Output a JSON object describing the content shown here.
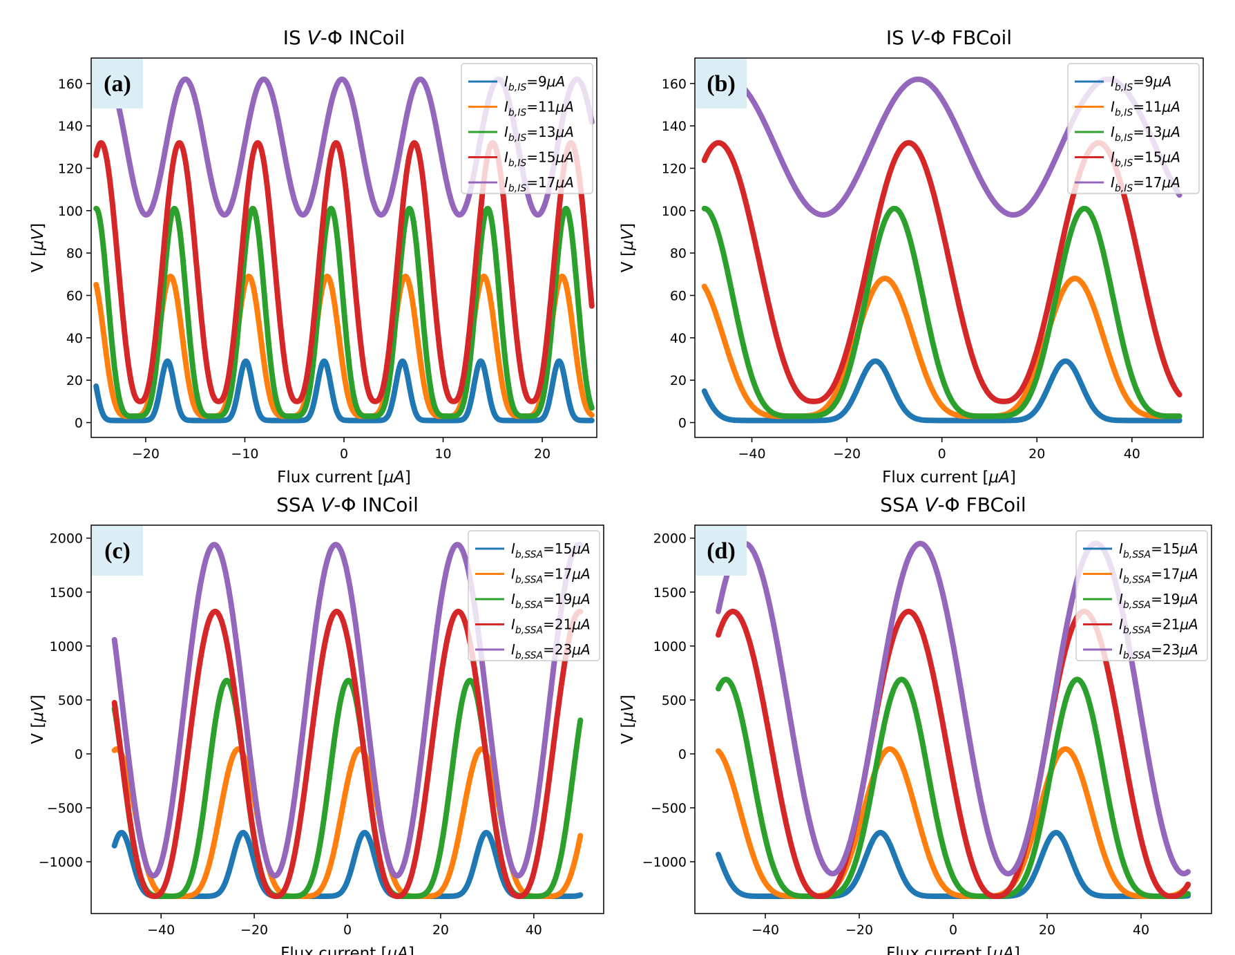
{
  "chart_data": [
    {
      "type": "line",
      "panel_label": "(a)",
      "title_parts": [
        "IS ",
        "V",
        "-Φ INCoil"
      ],
      "xlabel_parts": [
        "Flux current [",
        "μA",
        "]"
      ],
      "ylabel_parts": [
        "V [",
        "μV",
        "]"
      ],
      "xlim": [
        -25.5,
        25.5
      ],
      "ylim": [
        -7,
        172
      ],
      "xticks": [
        -20,
        -10,
        0,
        10,
        20
      ],
      "xtick_labels": [
        "−20",
        "−10",
        "0",
        "10",
        "20"
      ],
      "yticks": [
        0,
        20,
        40,
        60,
        80,
        100,
        120,
        140,
        160
      ],
      "ytick_labels": [
        "0",
        "20",
        "40",
        "60",
        "80",
        "100",
        "120",
        "140",
        "160"
      ],
      "legend_position": "top-right",
      "series": [
        {
          "name": "Ib,IS=9μA",
          "label_sub": "b,IS",
          "label_value": "=9",
          "unit": "μA",
          "color": "#1f77b4",
          "x_start": -25,
          "x_end": 25,
          "period": 7.9,
          "phase_peak": -17.8,
          "minimum": 1,
          "maximum": 29,
          "shape": "peaked"
        },
        {
          "name": "Ib,IS=11μA",
          "label_sub": "b,IS",
          "label_value": "=11",
          "unit": "μA",
          "color": "#ff7f0e",
          "x_start": -25,
          "x_end": 25,
          "period": 7.9,
          "phase_peak": -17.5,
          "minimum": 3,
          "maximum": 69,
          "shape": "mid"
        },
        {
          "name": "Ib,IS=13μA",
          "label_sub": "b,IS",
          "label_value": "=13",
          "unit": "μA",
          "color": "#2ca02c",
          "x_start": -25,
          "x_end": 25,
          "period": 7.9,
          "phase_peak": -17.1,
          "minimum": 3,
          "maximum": 101,
          "shape": "mid"
        },
        {
          "name": "Ib,IS=15μA",
          "label_sub": "b,IS",
          "label_value": "=15",
          "unit": "μA",
          "color": "#d62728",
          "x_start": -25,
          "x_end": 25,
          "period": 7.9,
          "phase_peak": -16.6,
          "minimum": 10,
          "maximum": 132,
          "shape": "broad"
        },
        {
          "name": "Ib,IS=17μA",
          "label_sub": "b,IS",
          "label_value": "=17",
          "unit": "μA",
          "color": "#9467bd",
          "x_start": -25,
          "x_end": 25,
          "period": 7.9,
          "phase_peak": -16.0,
          "minimum": 98,
          "maximum": 162,
          "shape": "sine"
        }
      ]
    },
    {
      "type": "line",
      "panel_label": "(b)",
      "title_parts": [
        "IS ",
        "V",
        "-Φ FBCoil"
      ],
      "xlabel_parts": [
        "Flux current [",
        "μA",
        "]"
      ],
      "ylabel_parts": [
        "V [",
        "μV",
        "]"
      ],
      "xlim": [
        -52,
        55
      ],
      "ylim": [
        -7,
        172
      ],
      "xticks": [
        -40,
        -20,
        0,
        20,
        40
      ],
      "xtick_labels": [
        "−40",
        "−20",
        "0",
        "20",
        "40"
      ],
      "yticks": [
        0,
        20,
        40,
        60,
        80,
        100,
        120,
        140,
        160
      ],
      "ytick_labels": [
        "0",
        "20",
        "40",
        "60",
        "80",
        "100",
        "120",
        "140",
        "160"
      ],
      "legend_position": "top-right",
      "series": [
        {
          "name": "Ib,IS=9μA",
          "label_sub": "b,IS",
          "label_value": "=9",
          "unit": "μA",
          "color": "#1f77b4",
          "x_start": -50,
          "x_end": 50,
          "period": 40,
          "phase_peak": -14,
          "minimum": 1,
          "maximum": 29,
          "shape": "peaked"
        },
        {
          "name": "Ib,IS=11μA",
          "label_sub": "b,IS",
          "label_value": "=11",
          "unit": "μA",
          "color": "#ff7f0e",
          "x_start": -50,
          "x_end": 50,
          "period": 40,
          "phase_peak": -12,
          "minimum": 3,
          "maximum": 68,
          "shape": "mid"
        },
        {
          "name": "Ib,IS=13μA",
          "label_sub": "b,IS",
          "label_value": "=13",
          "unit": "μA",
          "color": "#2ca02c",
          "x_start": -50,
          "x_end": 50,
          "period": 40,
          "phase_peak": -10,
          "minimum": 3,
          "maximum": 101,
          "shape": "mid"
        },
        {
          "name": "Ib,IS=15μA",
          "label_sub": "b,IS",
          "label_value": "=15",
          "unit": "μA",
          "color": "#d62728",
          "x_start": -50,
          "x_end": 50,
          "period": 40,
          "phase_peak": -7,
          "minimum": 10,
          "maximum": 132,
          "shape": "broad"
        },
        {
          "name": "Ib,IS=17μA",
          "label_sub": "b,IS",
          "label_value": "=17",
          "unit": "μA",
          "color": "#9467bd",
          "x_start": -50,
          "x_end": 50,
          "period": 40,
          "phase_peak": -5,
          "minimum": 98,
          "maximum": 162,
          "shape": "sine"
        }
      ]
    },
    {
      "type": "line",
      "panel_label": "(c)",
      "title_parts": [
        "SSA ",
        "V",
        "-Φ INCoil"
      ],
      "xlabel_parts": [
        "Flux current [",
        "μA",
        "]"
      ],
      "ylabel_parts": [
        "V [",
        "μV",
        "]"
      ],
      "xlim": [
        -55,
        55
      ],
      "ylim": [
        -1480,
        2120
      ],
      "xticks": [
        -40,
        -20,
        0,
        20,
        40
      ],
      "xtick_labels": [
        "−40",
        "−20",
        "0",
        "20",
        "40"
      ],
      "yticks": [
        -1000,
        -500,
        0,
        500,
        1000,
        1500,
        2000
      ],
      "ytick_labels": [
        "−1000",
        "−500",
        "0",
        "500",
        "1000",
        "1500",
        "2000"
      ],
      "legend_position": "top-right",
      "series": [
        {
          "name": "Ib,SSA=15μA",
          "label_sub": "b,SSA",
          "label_value": "=15",
          "unit": "μA",
          "color": "#1f77b4",
          "x_start": -50,
          "x_end": 50,
          "period": 26.1,
          "phase_peak": -48.5,
          "minimum": -1320,
          "maximum": -730,
          "shape": "peaked"
        },
        {
          "name": "Ib,SSA=17μA",
          "label_sub": "b,SSA",
          "label_value": "=17",
          "unit": "μA",
          "color": "#ff7f0e",
          "x_start": -50,
          "x_end": 50,
          "period": 26.1,
          "phase_peak": -49.5,
          "minimum": -1320,
          "maximum": 45,
          "shape": "mid"
        },
        {
          "name": "Ib,SSA=19μA",
          "label_sub": "b,SSA",
          "label_value": "=19",
          "unit": "μA",
          "color": "#2ca02c",
          "x_start": -50,
          "x_end": 50,
          "period": 26.1,
          "phase_peak": -52.0,
          "minimum": -1320,
          "maximum": 680,
          "shape": "mid"
        },
        {
          "name": "Ib,SSA=21μA",
          "label_sub": "b,SSA",
          "label_value": "=21",
          "unit": "μA",
          "color": "#d62728",
          "x_start": -50,
          "x_end": 50,
          "period": 26.1,
          "phase_peak": -28.4,
          "minimum": -1320,
          "maximum": 1320,
          "shape": "broad"
        },
        {
          "name": "Ib,SSA=23μA",
          "label_sub": "b,SSA",
          "label_value": "=23",
          "unit": "μA",
          "color": "#9467bd",
          "x_start": -50,
          "x_end": 50,
          "period": 26.1,
          "phase_peak": -28.6,
          "minimum": -1130,
          "maximum": 1940,
          "shape": "sine"
        }
      ]
    },
    {
      "type": "line",
      "panel_label": "(d)",
      "title_parts": [
        "SSA ",
        "V",
        "-Φ FBCoil"
      ],
      "xlabel_parts": [
        "Flux current [",
        "μA",
        "]"
      ],
      "ylabel_parts": [
        "V [",
        "μV",
        "]"
      ],
      "xlim": [
        -55,
        55
      ],
      "ylim": [
        -1480,
        2120
      ],
      "xticks": [
        -40,
        -20,
        0,
        20,
        40
      ],
      "xtick_labels": [
        "−40",
        "−20",
        "0",
        "20",
        "40"
      ],
      "yticks": [
        -1000,
        -500,
        0,
        500,
        1000,
        1500,
        2000
      ],
      "ytick_labels": [
        "−1000",
        "−500",
        "0",
        "500",
        "1000",
        "1500",
        "2000"
      ],
      "legend_position": "top-right",
      "series": [
        {
          "name": "Ib,SSA=15μA",
          "label_sub": "b,SSA",
          "label_value": "=15",
          "unit": "μA",
          "color": "#1f77b4",
          "x_start": -50,
          "x_end": 50,
          "period": 37.4,
          "phase_peak": -15.5,
          "minimum": -1320,
          "maximum": -730,
          "shape": "peaked"
        },
        {
          "name": "Ib,SSA=17μA",
          "label_sub": "b,SSA",
          "label_value": "=17",
          "unit": "μA",
          "color": "#ff7f0e",
          "x_start": -50,
          "x_end": 50,
          "period": 37.4,
          "phase_peak": -13.5,
          "minimum": -1320,
          "maximum": 45,
          "shape": "mid"
        },
        {
          "name": "Ib,SSA=19μA",
          "label_sub": "b,SSA",
          "label_value": "=19",
          "unit": "μA",
          "color": "#2ca02c",
          "x_start": -50,
          "x_end": 50,
          "period": 37.4,
          "phase_peak": -11.0,
          "minimum": -1320,
          "maximum": 690,
          "shape": "mid"
        },
        {
          "name": "Ib,SSA=21μA",
          "label_sub": "b,SSA",
          "label_value": "=21",
          "unit": "μA",
          "color": "#d62728",
          "x_start": -50,
          "x_end": 50,
          "period": 37.4,
          "phase_peak": -9.5,
          "minimum": -1320,
          "maximum": 1320,
          "shape": "broad"
        },
        {
          "name": "Ib,SSA=23μA",
          "label_sub": "b,SSA",
          "label_value": "=23",
          "unit": "μA",
          "color": "#9467bd",
          "x_start": -50,
          "x_end": 50,
          "period": 37.4,
          "phase_peak": -7.0,
          "minimum": -1110,
          "maximum": 1950,
          "shape": "sine"
        }
      ]
    }
  ]
}
